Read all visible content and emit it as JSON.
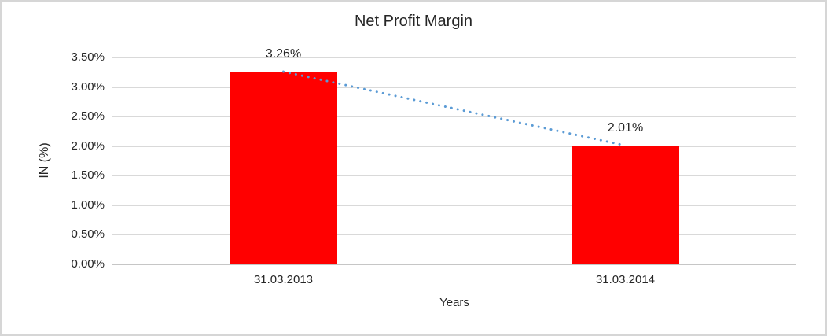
{
  "window": {
    "background": "#ffffff",
    "frame_color": "#d6d6d6"
  },
  "chart_data": {
    "type": "bar",
    "title": "Net Profit Margin",
    "xlabel": "Years",
    "ylabel": "IN (%)",
    "categories": [
      "31.03.2013",
      "31.03.2014"
    ],
    "values": [
      3.26,
      2.01
    ],
    "data_labels": [
      "3.26%",
      "2.01%"
    ],
    "y_ticks": [
      "0.00%",
      "0.50%",
      "1.00%",
      "1.50%",
      "2.00%",
      "2.50%",
      "3.00%",
      "3.50%"
    ],
    "ylim": [
      0,
      3.5
    ],
    "grid": true,
    "legend_position": "none",
    "bar_color": "#ff0000",
    "gridline_color": "#d9d9d9",
    "text_color": "#262626",
    "trendline": {
      "style": "dotted",
      "color": "#5b9bd5"
    }
  }
}
